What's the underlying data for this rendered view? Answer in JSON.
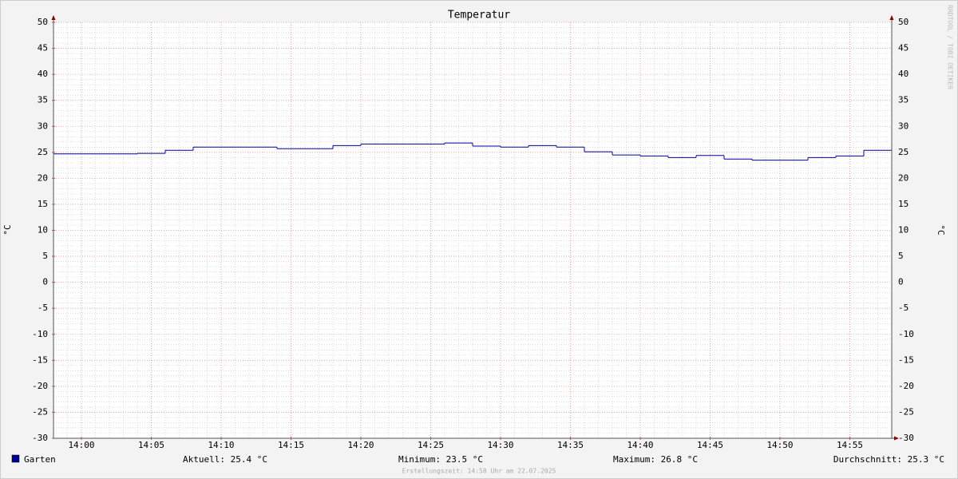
{
  "chart_data": {
    "type": "line",
    "step": "post",
    "title": "Temperatur",
    "y_label": "°C",
    "watermark": "RRDTOOL / TOBI OETIKER",
    "xlim": [
      "13:58",
      "14:58"
    ],
    "xticks": [
      "14:00",
      "14:05",
      "14:10",
      "14:15",
      "14:20",
      "14:25",
      "14:30",
      "14:35",
      "14:40",
      "14:45",
      "14:50",
      "14:55"
    ],
    "x": [
      "13:58",
      "14:04",
      "14:06",
      "14:08",
      "14:14",
      "14:18",
      "14:20",
      "14:26",
      "14:28",
      "14:30",
      "14:32",
      "14:34",
      "14:36",
      "14:38",
      "14:40",
      "14:42",
      "14:44",
      "14:46",
      "14:48",
      "14:52",
      "14:54",
      "14:56"
    ],
    "series": [
      {
        "name": "Garten",
        "color": "#000099",
        "values": [
          24.7,
          24.8,
          25.4,
          26.0,
          25.7,
          26.3,
          26.6,
          26.8,
          26.2,
          26.0,
          26.3,
          26.0,
          25.1,
          24.5,
          24.3,
          24.0,
          24.4,
          23.7,
          23.5,
          24.0,
          24.3,
          25.4
        ]
      }
    ],
    "ylim": [
      -30,
      50
    ],
    "yticks": [
      -30,
      -25,
      -20,
      -15,
      -10,
      -5,
      0,
      5,
      10,
      15,
      20,
      25,
      30,
      35,
      40,
      45,
      50
    ],
    "grid": true,
    "legend_stats": [
      "Aktuell: 25.4 °C",
      "Minimum: 23.5 °C",
      "Maximum: 26.8 °C",
      "Durchschnitt: 25.3 °C"
    ],
    "footer": "Erstellungszeit: 14:58 Uhr am 22.07.2025"
  }
}
